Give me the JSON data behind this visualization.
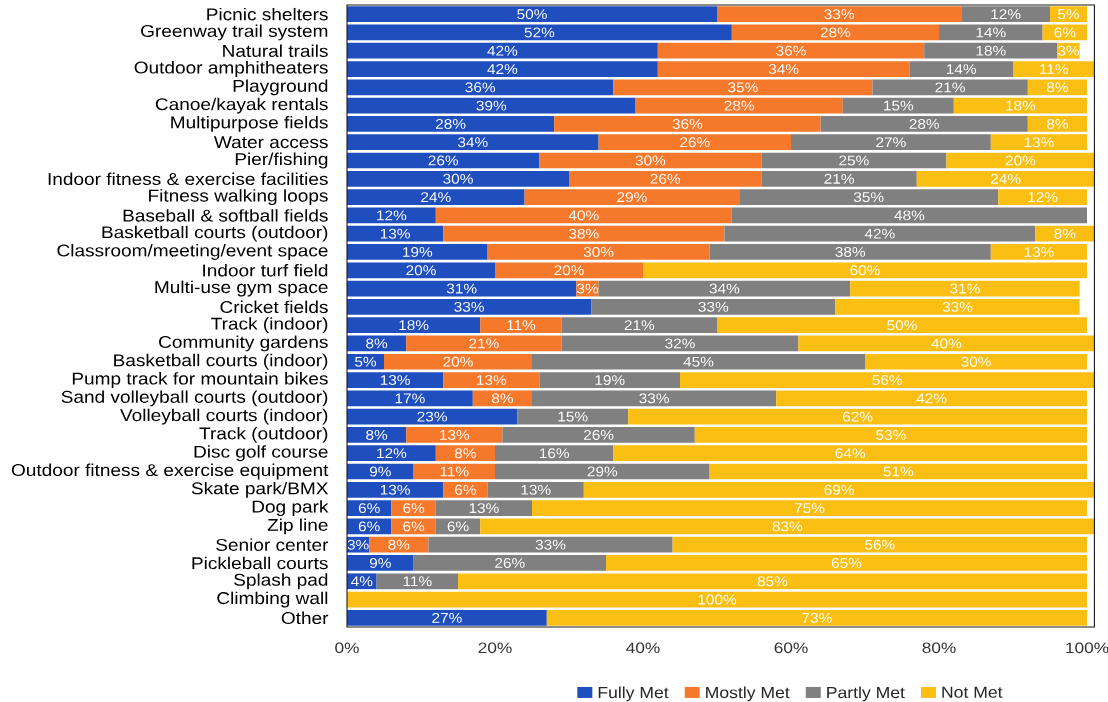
{
  "chart_data": {
    "type": "bar",
    "orientation": "horizontal",
    "stacked": true,
    "categories": [
      "Picnic shelters",
      "Greenway trail system",
      "Natural trails",
      "Outdoor amphitheaters",
      "Playground",
      "Canoe/kayak rentals",
      "Multipurpose fields",
      "Water access",
      "Pier/fishing",
      "Indoor fitness & exercise facilities",
      "Fitness walking loops",
      "Baseball & softball fields",
      "Basketball courts (outdoor)",
      "Classroom/meeting/event space",
      "Indoor turf field",
      "Multi-use gym space",
      "Cricket fields",
      "Track (indoor)",
      "Community gardens",
      "Basketball courts (indoor)",
      "Pump track for mountain bikes",
      "Sand volleyball courts (outdoor)",
      "Volleyball courts (indoor)",
      "Track (outdoor)",
      "Disc golf course",
      "Outdoor fitness & exercise equipment",
      "Skate park/BMX",
      "Dog park",
      "Zip line",
      "Senior center",
      "Pickleball courts",
      "Splash pad",
      "Climbing wall",
      "Other"
    ],
    "series": [
      {
        "name": "Fully Met",
        "color": "#1f4fbf",
        "values": [
          50,
          52,
          42,
          42,
          36,
          39,
          28,
          34,
          26,
          30,
          24,
          12,
          13,
          19,
          20,
          31,
          33,
          18,
          8,
          5,
          13,
          17,
          23,
          8,
          12,
          9,
          13,
          6,
          6,
          3,
          9,
          4,
          null,
          27
        ],
        "value_labels": [
          "50%",
          "52%",
          "42%",
          "42%",
          "36%",
          "39%",
          "28%",
          "34%",
          "26%",
          "30%",
          "24%",
          "12%",
          "13%",
          "19%",
          "20%",
          "31%",
          "33%",
          "18%",
          "8%",
          "5%",
          "13%",
          "17%",
          "23%",
          "8%",
          "12%",
          "9%",
          "13%",
          "6%",
          "6%",
          "3%",
          "9%",
          "4%",
          null,
          "27%"
        ]
      },
      {
        "name": "Mostly Met",
        "color": "#f6782a",
        "values": [
          33,
          28,
          36,
          34,
          35,
          28,
          36,
          26,
          30,
          26,
          29,
          40,
          38,
          30,
          20,
          3,
          null,
          11,
          21,
          20,
          13,
          8,
          null,
          13,
          8,
          11,
          6,
          6,
          6,
          8,
          null,
          null,
          null,
          null
        ],
        "value_labels": [
          "33%",
          "28%",
          "36%",
          "34%",
          "35%",
          "28%",
          "36%",
          "26%",
          "30%",
          "26%",
          "29%",
          "40%",
          "38%",
          "30%",
          "20%",
          "3%",
          null,
          "11%",
          "21%",
          "20%",
          "13%",
          "8%",
          null,
          "13%",
          "8%",
          "11%",
          "6%",
          "6%",
          "6%",
          "8%",
          null,
          null,
          null,
          null
        ]
      },
      {
        "name": "Partly Met",
        "color": "#808080",
        "values": [
          12,
          14,
          18,
          14,
          21,
          15,
          28,
          27,
          25,
          21,
          35,
          48,
          42,
          38,
          null,
          34,
          33,
          21,
          32,
          45,
          19,
          33,
          15,
          26,
          16,
          29,
          13,
          13,
          6,
          33,
          26,
          11,
          null,
          null
        ],
        "value_labels": [
          "12%",
          "14%",
          "18%",
          "14%",
          "21%",
          "15%",
          "28%",
          "27%",
          "25%",
          "21%",
          "35%",
          "48%",
          "42%",
          "38%",
          null,
          "34%",
          "33%",
          "21%",
          "32%",
          "45%",
          "19%",
          "33%",
          "15%",
          "26%",
          "16%",
          "29%",
          "13%",
          "13%",
          "6%",
          "33%",
          "26%",
          "11%",
          null,
          null
        ]
      },
      {
        "name": "Not Met",
        "color": "#fbbf14",
        "values": [
          5,
          6,
          3,
          11,
          8,
          18,
          8,
          13,
          20,
          24,
          12,
          null,
          8,
          13,
          60,
          31,
          33,
          50,
          40,
          30,
          56,
          42,
          62,
          53,
          64,
          51,
          69,
          75,
          83,
          56,
          65,
          85,
          100,
          73
        ],
        "value_labels": [
          "5%",
          "6%",
          "3%",
          "11%",
          "8%",
          "18%",
          "8%",
          "13%",
          "20%",
          "24%",
          "12%",
          null,
          "8%",
          "13%",
          "60%",
          "31%",
          "33%",
          "50%",
          "40%",
          "30%",
          "56%",
          "42%",
          "62%",
          "53%",
          "64%",
          "51%",
          "69%",
          "75%",
          "83%",
          "56%",
          "65%",
          "85%",
          "100%",
          "73%"
        ]
      }
    ],
    "xlim": [
      0,
      101
    ],
    "xticks": [
      {
        "value": 0,
        "label": "0%"
      },
      {
        "value": 20,
        "label": "20%"
      },
      {
        "value": 40,
        "label": "40%"
      },
      {
        "value": 60,
        "label": "60%"
      },
      {
        "value": 80,
        "label": "80%"
      },
      {
        "value": 100,
        "label": "100%"
      }
    ],
    "legend": "bottom"
  }
}
